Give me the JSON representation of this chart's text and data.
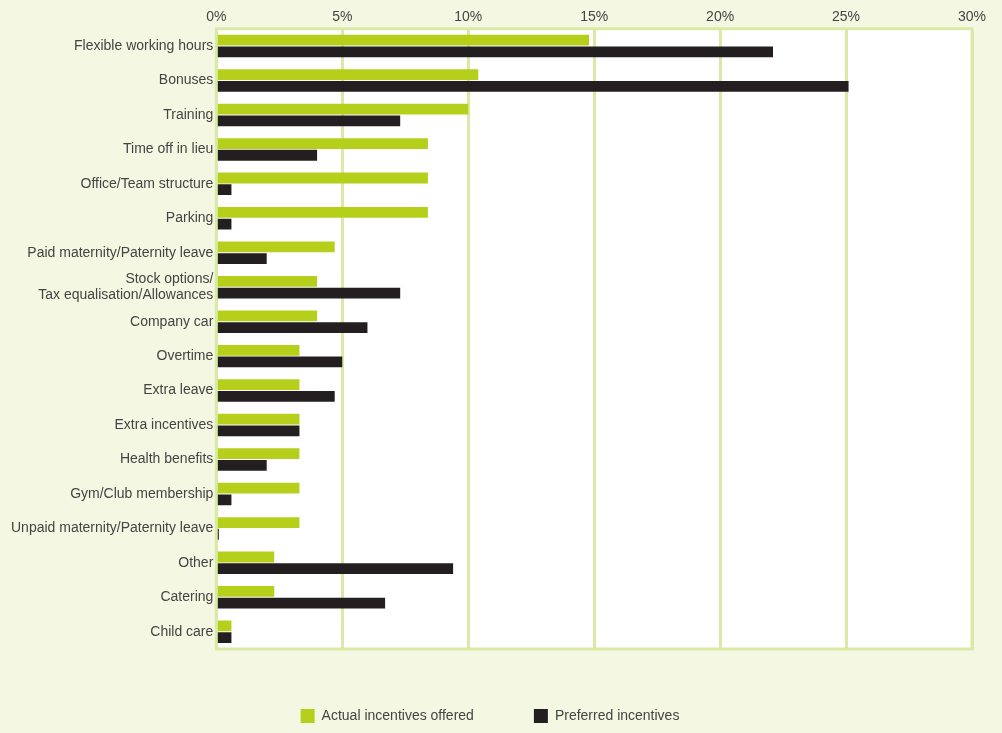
{
  "chart_data": {
    "type": "bar",
    "orientation": "horizontal",
    "categories": [
      "Flexible working hours",
      "Bonuses",
      "Training",
      "Time off in lieu",
      "Office/Team structure",
      "Parking",
      "Paid maternity/Paternity leave",
      "Stock options/\nTax equalisation/Allowances",
      "Company car",
      "Overtime",
      "Extra leave",
      "Extra incentives",
      "Health benefits",
      "Gym/Club membership",
      "Unpaid maternity/Paternity leave",
      "Other",
      "Catering",
      "Child care"
    ],
    "series": [
      {
        "name": "Actual incentives offered",
        "color": "#b5cf1b",
        "values": [
          14.8,
          10.4,
          10.0,
          8.4,
          8.4,
          8.4,
          4.7,
          4.0,
          4.0,
          3.3,
          3.3,
          3.3,
          3.3,
          3.3,
          3.3,
          2.3,
          2.3,
          0.6
        ]
      },
      {
        "name": "Preferred incentives",
        "color": "#231f20",
        "values": [
          22.1,
          25.1,
          7.3,
          4.0,
          0.6,
          0.6,
          2.0,
          7.3,
          6.0,
          5.0,
          4.7,
          3.3,
          2.0,
          0.6,
          0.1,
          9.4,
          6.7,
          0.6
        ]
      }
    ],
    "xlim": [
      0,
      30
    ],
    "xticks": [
      {
        "value": 0,
        "label": "0%"
      },
      {
        "value": 5,
        "label": "5%"
      },
      {
        "value": 10,
        "label": "10%"
      },
      {
        "value": 15,
        "label": "15%"
      },
      {
        "value": 20,
        "label": "20%"
      },
      {
        "value": 25,
        "label": "25%"
      },
      {
        "value": 30,
        "label": "30%"
      }
    ],
    "grid": "x",
    "legend": "bottom"
  }
}
